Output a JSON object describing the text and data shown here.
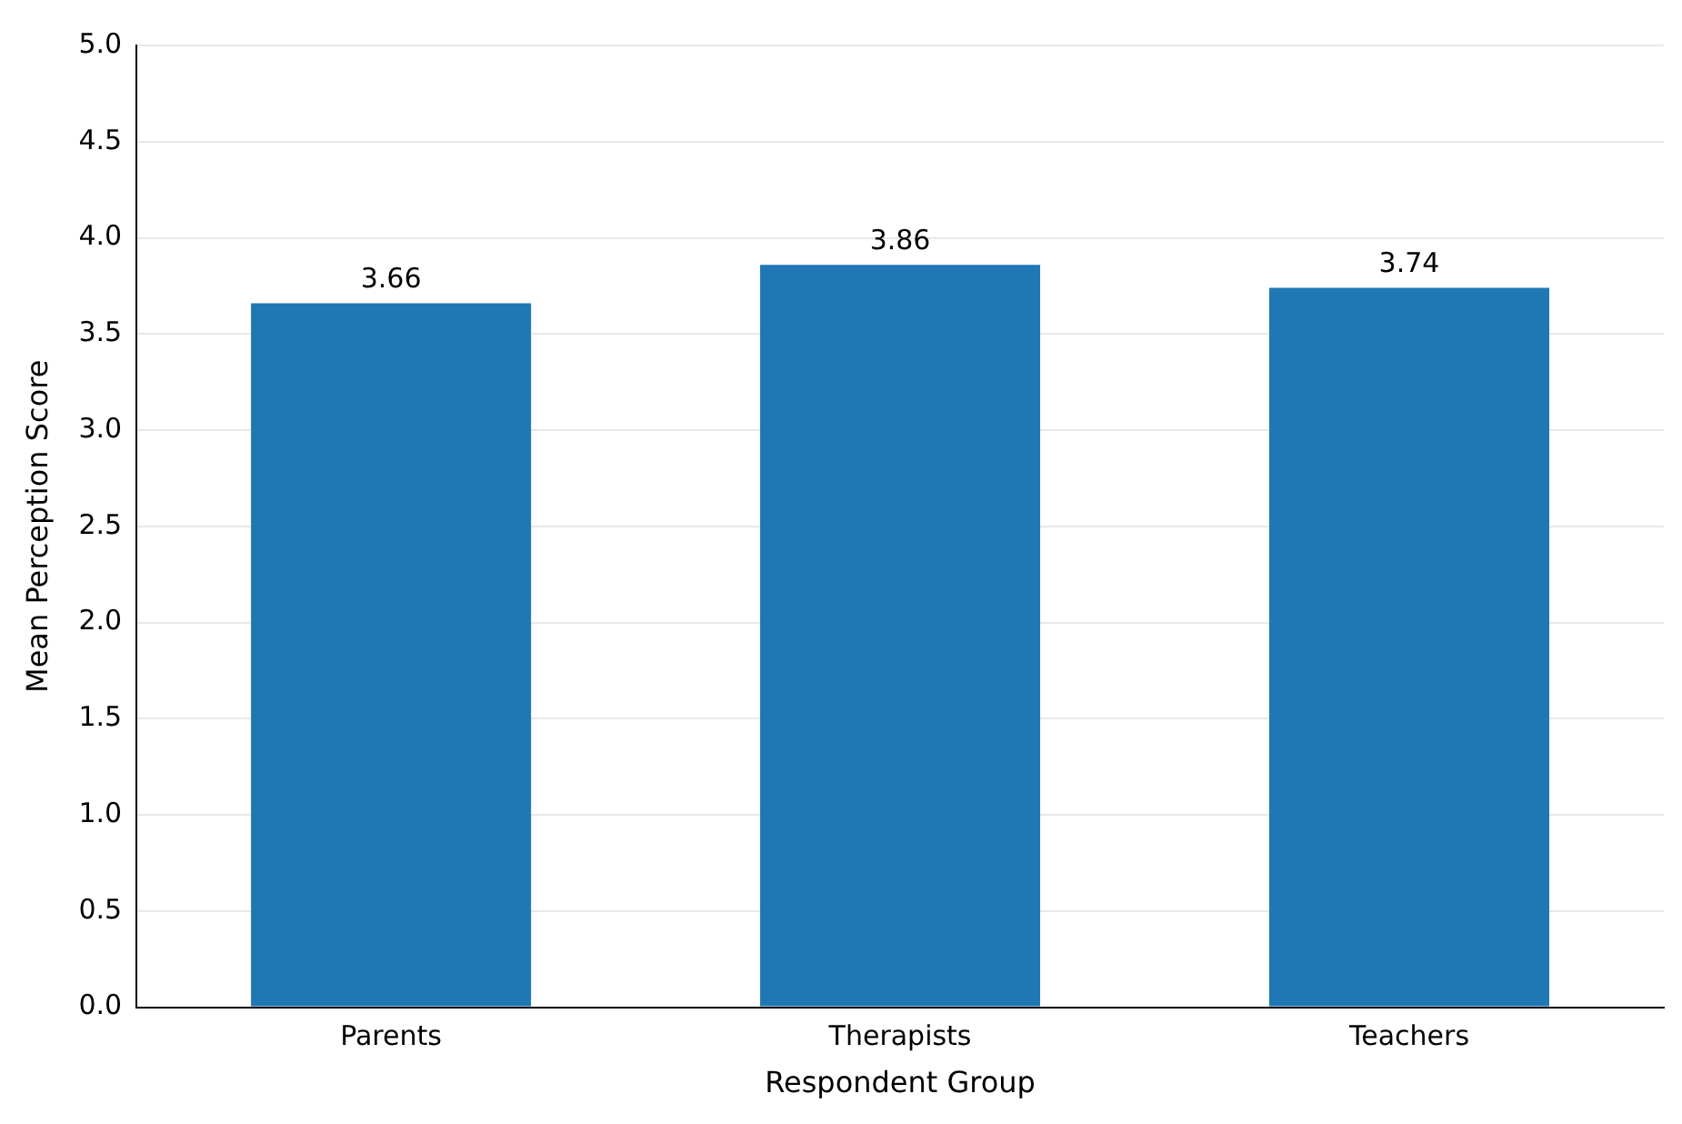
{
  "chart_data": {
    "type": "bar",
    "xlabel": "Respondent Group",
    "ylabel": "Mean Perception Score",
    "categories": [
      "Parents",
      "Therapists",
      "Teachers"
    ],
    "values": [
      3.66,
      3.86,
      3.74
    ],
    "color": "#1f77b4",
    "ylim": [
      0,
      5
    ],
    "yticks": [
      {
        "value": 0,
        "label": "0.0"
      },
      {
        "value": 0.5,
        "label": "0.5"
      },
      {
        "value": 1,
        "label": "1.0"
      },
      {
        "value": 1.5,
        "label": "1.5"
      },
      {
        "value": 2,
        "label": "2.0"
      },
      {
        "value": 2.5,
        "label": "2.5"
      },
      {
        "value": 3,
        "label": "3.0"
      },
      {
        "value": 3.5,
        "label": "3.5"
      },
      {
        "value": 4,
        "label": "4.0"
      },
      {
        "value": 4.5,
        "label": "4.5"
      },
      {
        "value": 5,
        "label": "5.0"
      }
    ],
    "grid": "y",
    "data_labels": true
  }
}
